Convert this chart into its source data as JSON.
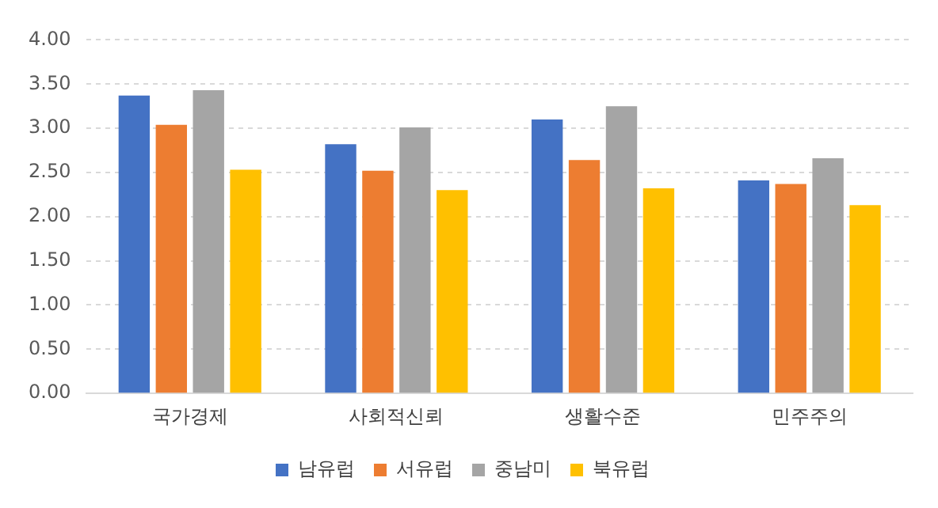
{
  "chart_data": {
    "type": "bar",
    "categories": [
      "국가경제",
      "사회적신뢰",
      "생활수준",
      "민주주의"
    ],
    "series": [
      {
        "name": "남유럽",
        "color": "#4472c4",
        "values": [
          3.37,
          2.82,
          3.1,
          2.41
        ]
      },
      {
        "name": "서유럽",
        "color": "#ed7d31",
        "values": [
          3.04,
          2.52,
          2.64,
          2.37
        ]
      },
      {
        "name": "중남미",
        "color": "#a5a5a5",
        "values": [
          3.43,
          3.01,
          3.25,
          2.66
        ]
      },
      {
        "name": "북유럽",
        "color": "#ffc000",
        "values": [
          2.53,
          2.3,
          2.32,
          2.13
        ]
      }
    ],
    "ylim": [
      0,
      4
    ],
    "yticks": [
      {
        "value": 0,
        "label": "0.00"
      },
      {
        "value": 0.5,
        "label": "0.50"
      },
      {
        "value": 1,
        "label": "1.00"
      },
      {
        "value": 1.5,
        "label": "1.50"
      },
      {
        "value": 2,
        "label": "2.00"
      },
      {
        "value": 2.5,
        "label": "2.50"
      },
      {
        "value": 3,
        "label": "3.00"
      },
      {
        "value": 3.5,
        "label": "3.50"
      },
      {
        "value": 4,
        "label": "4.00"
      }
    ],
    "grid": "y",
    "legend": "bottom"
  }
}
